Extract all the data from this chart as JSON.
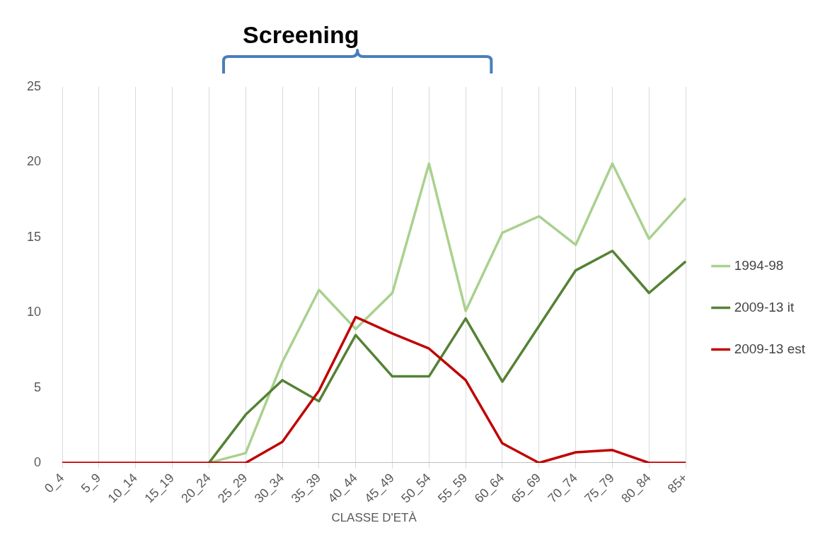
{
  "chart_data": {
    "type": "line",
    "xlabel": "CLASSE D'ETÀ",
    "annotations": [
      "Screening"
    ],
    "categories": [
      "0_4",
      "5_9",
      "10_14",
      "15_19",
      "20_24",
      "25_29",
      "30_34",
      "35_39",
      "40_44",
      "45_49",
      "50_54",
      "55_59",
      "60_64",
      "65_69",
      "70_74",
      "75_79",
      "80_84",
      "85+"
    ],
    "series": [
      {
        "name": "1994-98",
        "color": "#a9d18e",
        "values": [
          null,
          null,
          null,
          null,
          0,
          0.65,
          6.7,
          11.5,
          8.9,
          11.3,
          19.9,
          10.1,
          15.3,
          16.4,
          14.5,
          19.9,
          14.9,
          17.6
        ]
      },
      {
        "name": "2009-13 it",
        "color": "#548235",
        "values": [
          null,
          null,
          null,
          null,
          0,
          3.2,
          5.5,
          4.1,
          8.5,
          5.75,
          5.75,
          9.6,
          5.4,
          9.1,
          12.8,
          14.1,
          11.3,
          13.4
        ]
      },
      {
        "name": "2009-13 est",
        "color": "#c00000",
        "values": [
          0,
          0,
          0,
          0,
          0,
          0,
          1.4,
          4.8,
          9.7,
          8.6,
          7.6,
          5.5,
          1.3,
          0,
          0.7,
          0.85,
          0,
          0
        ]
      }
    ],
    "ylim": [
      0,
      25
    ],
    "yticks": [
      0,
      5,
      10,
      15,
      20,
      25
    ],
    "grid": "x",
    "legend": "right",
    "marker": "none",
    "line_style": "solid"
  }
}
